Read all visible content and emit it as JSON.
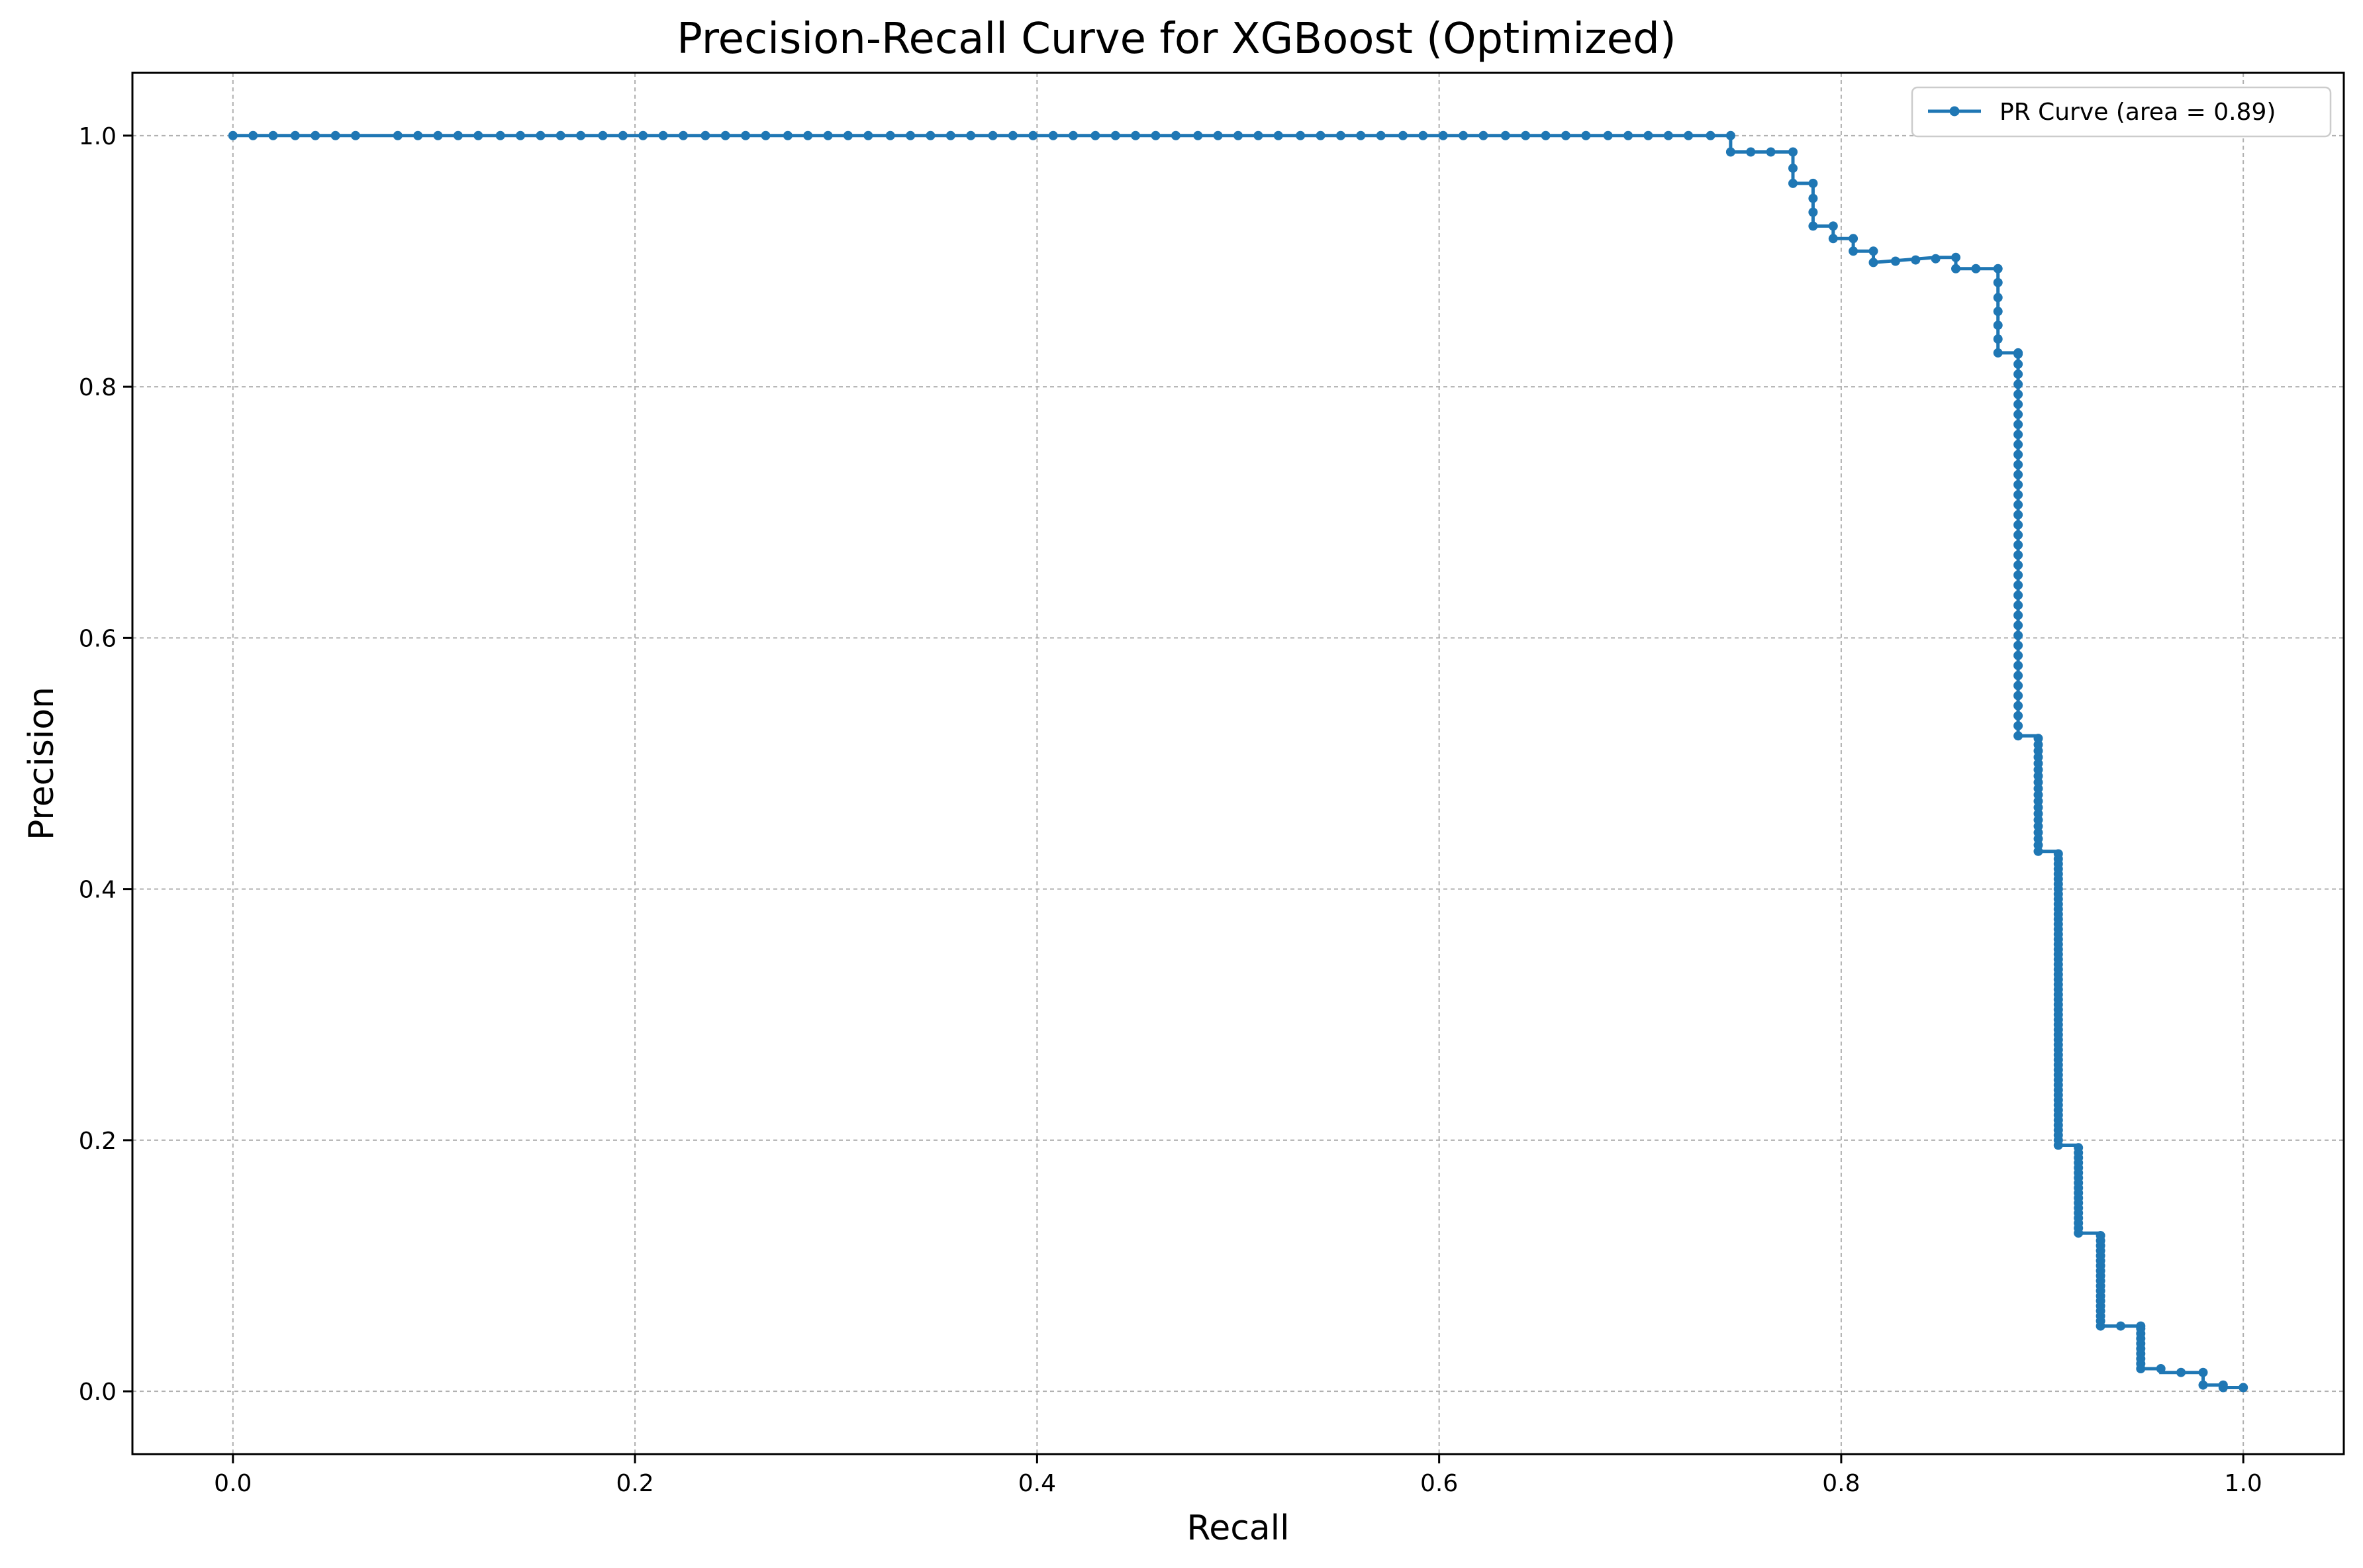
{
  "chart_data": {
    "type": "line",
    "title": "Precision-Recall Curve for XGBoost (Optimized)",
    "xlabel": "Recall",
    "ylabel": "Precision",
    "xlim": [
      -0.05,
      1.05
    ],
    "ylim": [
      -0.05,
      1.05
    ],
    "x_ticks": [
      "0.0",
      "0.2",
      "0.4",
      "0.6",
      "0.8",
      "1.0"
    ],
    "y_ticks": [
      "0.0",
      "0.2",
      "0.4",
      "0.6",
      "0.8",
      "1.0"
    ],
    "grid": true,
    "grid_style": "dashed",
    "legend_position": "top-right",
    "line_color": "#1f77b4",
    "marker": "dot",
    "series": [
      {
        "name": "PR Curve (area = 0.89)",
        "step_points": [
          [
            0.0,
            1.0
          ],
          [
            0.745,
            1.0
          ],
          [
            0.745,
            0.987
          ],
          [
            0.776,
            0.987
          ],
          [
            0.776,
            0.962
          ],
          [
            0.786,
            0.962
          ],
          [
            0.786,
            0.928
          ],
          [
            0.796,
            0.928
          ],
          [
            0.796,
            0.918
          ],
          [
            0.806,
            0.918
          ],
          [
            0.806,
            0.908
          ],
          [
            0.816,
            0.908
          ],
          [
            0.816,
            0.899
          ],
          [
            0.847,
            0.903
          ],
          [
            0.857,
            0.903
          ],
          [
            0.857,
            0.894
          ],
          [
            0.878,
            0.894
          ],
          [
            0.878,
            0.827
          ],
          [
            0.888,
            0.827
          ],
          [
            0.888,
            0.522
          ],
          [
            0.898,
            0.522
          ],
          [
            0.898,
            0.43
          ],
          [
            0.908,
            0.43
          ],
          [
            0.908,
            0.196
          ],
          [
            0.918,
            0.196
          ],
          [
            0.918,
            0.126
          ],
          [
            0.929,
            0.126
          ],
          [
            0.929,
            0.052
          ],
          [
            0.949,
            0.052
          ],
          [
            0.949,
            0.018
          ],
          [
            0.959,
            0.018
          ],
          [
            0.959,
            0.015
          ],
          [
            0.98,
            0.015
          ],
          [
            0.98,
            0.005
          ],
          [
            0.99,
            0.005
          ],
          [
            0.99,
            0.003
          ],
          [
            1.0,
            0.003
          ]
        ],
        "markers": {
          "top_row_recall": [
            0.0,
            0.01,
            0.02,
            0.031,
            0.041,
            0.051,
            0.061,
            0.082,
            0.092,
            0.102,
            0.112,
            0.122,
            0.133,
            0.143,
            0.153,
            0.163,
            0.173,
            0.184,
            0.194,
            0.204,
            0.214,
            0.224,
            0.235,
            0.245,
            0.255,
            0.265,
            0.276,
            0.286,
            0.296,
            0.306,
            0.316,
            0.327,
            0.337,
            0.347,
            0.357,
            0.367,
            0.378,
            0.388,
            0.398,
            0.408,
            0.418,
            0.429,
            0.439,
            0.449,
            0.459,
            0.469,
            0.48,
            0.49,
            0.5,
            0.51,
            0.52,
            0.531,
            0.541,
            0.551,
            0.561,
            0.571,
            0.582,
            0.592,
            0.602,
            0.612,
            0.622,
            0.633,
            0.643,
            0.653,
            0.663,
            0.673,
            0.684,
            0.694,
            0.704,
            0.714,
            0.724,
            0.735,
            0.745
          ],
          "other_points": [
            [
              0.745,
              0.987
            ],
            [
              0.755,
              0.987
            ],
            [
              0.765,
              0.987
            ],
            [
              0.776,
              0.987
            ],
            [
              0.776,
              0.974
            ],
            [
              0.776,
              0.962
            ],
            [
              0.786,
              0.962
            ],
            [
              0.786,
              0.95
            ],
            [
              0.786,
              0.939
            ],
            [
              0.786,
              0.928
            ],
            [
              0.796,
              0.928
            ],
            [
              0.796,
              0.918
            ],
            [
              0.806,
              0.918
            ],
            [
              0.806,
              0.908
            ],
            [
              0.816,
              0.908
            ],
            [
              0.816,
              0.899
            ],
            [
              0.827,
              0.9
            ],
            [
              0.837,
              0.901
            ],
            [
              0.847,
              0.902
            ],
            [
              0.857,
              0.903
            ],
            [
              0.857,
              0.894
            ],
            [
              0.867,
              0.894
            ],
            [
              0.878,
              0.894
            ],
            [
              0.878,
              0.883
            ],
            [
              0.878,
              0.871
            ],
            [
              0.878,
              0.86
            ],
            [
              0.878,
              0.849
            ],
            [
              0.878,
              0.838
            ],
            [
              0.878,
              0.827
            ],
            [
              0.888,
              0.827
            ],
            [
              0.949,
              0.052
            ],
            [
              0.939,
              0.052
            ],
            [
              0.959,
              0.018
            ],
            [
              0.969,
              0.015
            ],
            [
              0.98,
              0.015
            ],
            [
              0.98,
              0.005
            ],
            [
              0.99,
              0.005
            ],
            [
              0.99,
              0.003
            ],
            [
              1.0,
              0.003
            ]
          ],
          "dense_columns": [
            {
              "x": 0.888,
              "y_from": 0.522,
              "y_to": 0.827,
              "step": 0.008
            },
            {
              "x": 0.898,
              "y_from": 0.43,
              "y_to": 0.522,
              "step": 0.005
            },
            {
              "x": 0.908,
              "y_from": 0.196,
              "y_to": 0.43,
              "step": 0.004
            },
            {
              "x": 0.918,
              "y_from": 0.126,
              "y_to": 0.196,
              "step": 0.004
            },
            {
              "x": 0.929,
              "y_from": 0.052,
              "y_to": 0.126,
              "step": 0.004
            },
            {
              "x": 0.949,
              "y_from": 0.018,
              "y_to": 0.052,
              "step": 0.004
            }
          ]
        }
      }
    ]
  }
}
